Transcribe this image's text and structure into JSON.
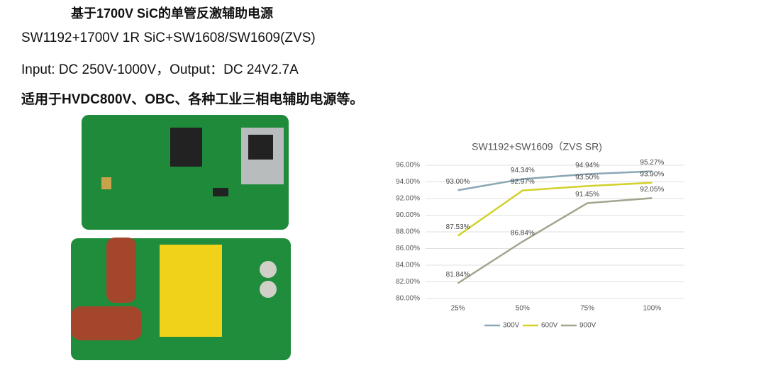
{
  "heading": {
    "title": "基于1700V SiC的单管反激辅助电源",
    "line1": "SW1192+1700V 1R SiC+SW1608/SW1609(ZVS)",
    "line2": "Input:  DC 250V-1000V，Output：DC 24V2.7A",
    "line3": "适用于HVDC800V、OBC、各种工业三相电辅助电源等。"
  },
  "chart_data": {
    "type": "line",
    "title": "SW1192+SW1609（ZVS SR)",
    "categories": [
      "25%",
      "50%",
      "75%",
      "100%"
    ],
    "series": [
      {
        "name": "300V",
        "color": "#8aa7b6",
        "values": [
          93.0,
          94.34,
          94.94,
          95.27
        ],
        "value_labels": [
          "93.00%",
          "94.34%",
          "94.94%",
          "95.27%"
        ]
      },
      {
        "name": "600V",
        "color": "#d2d12a",
        "values": [
          87.53,
          92.97,
          93.5,
          93.9
        ],
        "value_labels": [
          "87.53%",
          "92.97%",
          "93.50%",
          "93.90%"
        ]
      },
      {
        "name": "900V",
        "color": "#a3a38e",
        "values": [
          81.84,
          86.84,
          91.45,
          92.05
        ],
        "value_labels": [
          "81.84%",
          "86.84%",
          "91.45%",
          "92.05%"
        ]
      }
    ],
    "ylim": [
      80,
      96
    ],
    "yticks": [
      {
        "value": 80,
        "label": "80.00%"
      },
      {
        "value": 82,
        "label": "82.00%"
      },
      {
        "value": 84,
        "label": "84.00%"
      },
      {
        "value": 86,
        "label": "86.00%"
      },
      {
        "value": 88,
        "label": "88.00%"
      },
      {
        "value": 90,
        "label": "90.00%"
      },
      {
        "value": 92,
        "label": "92.00%"
      },
      {
        "value": 94,
        "label": "94.00%"
      },
      {
        "value": 96,
        "label": "96.00%"
      }
    ],
    "grid": true,
    "legend": "bottom"
  }
}
